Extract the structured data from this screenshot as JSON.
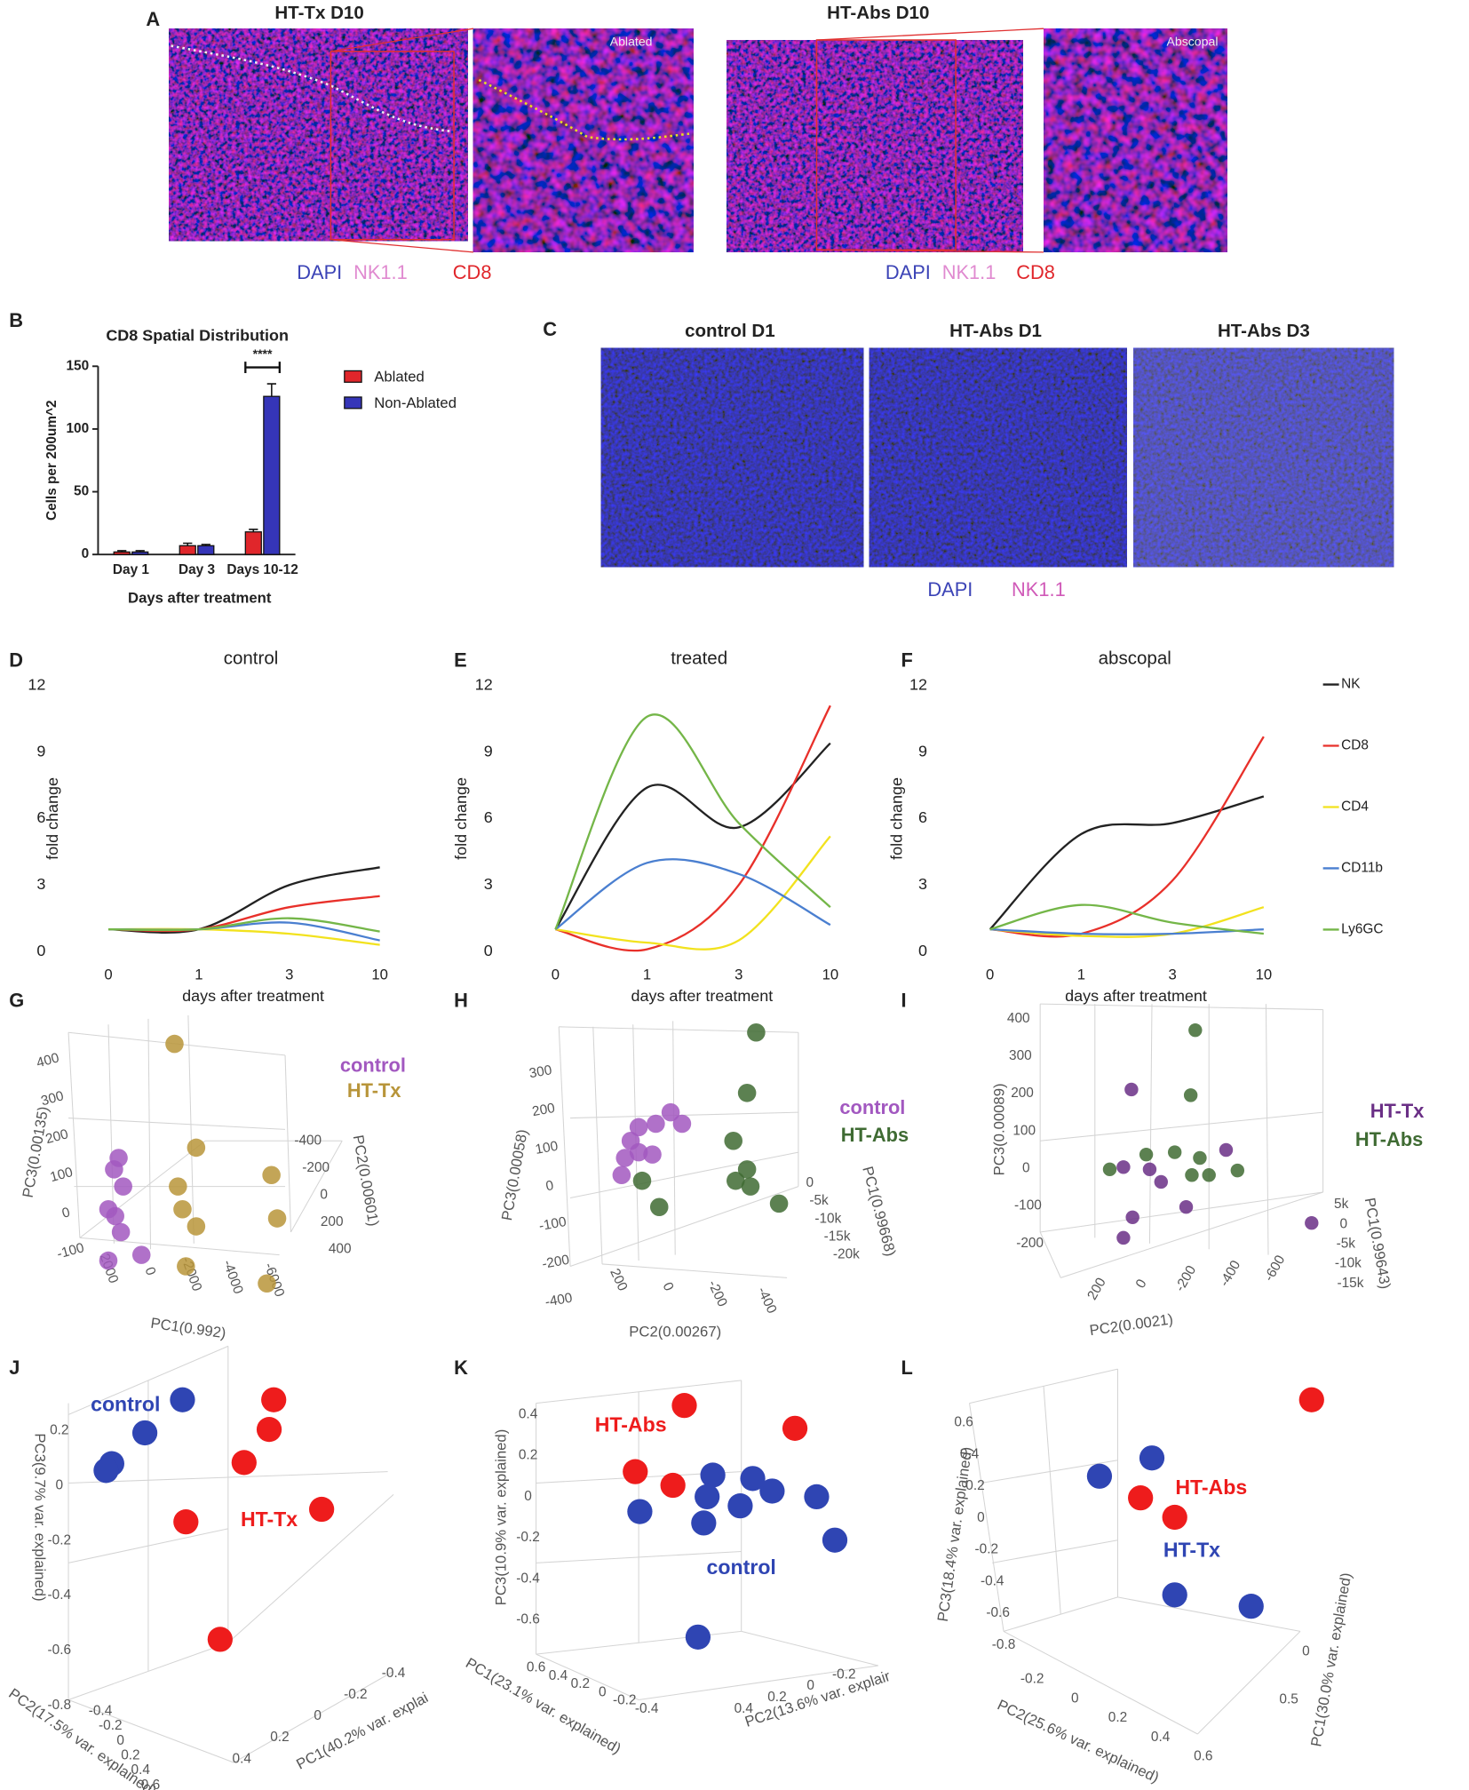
{
  "panel_labels": [
    "A",
    "B",
    "C",
    "D",
    "E",
    "F",
    "G",
    "H",
    "I",
    "J",
    "K",
    "L"
  ],
  "panel_a": {
    "images": [
      {
        "title": "HT-Tx D10",
        "inset": "Ablated"
      },
      {
        "title": "HT-Abs D10",
        "inset": "Abscopal"
      }
    ],
    "stain_legend": [
      "DAPI",
      "NK1.1",
      "CD8"
    ]
  },
  "panel_c": {
    "titles": [
      "control D1",
      "HT-Abs D1",
      "HT-Abs D3"
    ],
    "stain_legend": [
      "DAPI",
      "NK1.1"
    ]
  },
  "chart_data": [
    {
      "type": "bar",
      "title": "CD8 Spatial Distribution",
      "ylabel": "Cells per 200um^2",
      "xlabel": "Days after treatment",
      "categories": [
        "Day 1",
        "Day 3",
        "Days 10-12"
      ],
      "series": [
        {
          "name": "Ablated",
          "color": "#e0262b",
          "values": [
            2,
            7,
            18
          ],
          "errors": [
            1,
            2,
            2
          ]
        },
        {
          "name": "Non-Ablated",
          "color": "#3535b8",
          "values": [
            2,
            7,
            126
          ],
          "errors": [
            1,
            1,
            10
          ]
        }
      ],
      "ylim": [
        0,
        150
      ],
      "yticks": [
        0,
        50,
        100,
        150
      ],
      "legend": "right",
      "annotation": "****"
    },
    {
      "type": "line",
      "title": "control",
      "ylabel": "fold change",
      "xlabel": "days after treatment",
      "categories": [
        "0",
        "1",
        "3",
        "10"
      ],
      "series": [
        {
          "name": "NK",
          "color": "#222222",
          "values": [
            1,
            1,
            3,
            3.8
          ]
        },
        {
          "name": "CD8",
          "color": "#e8302a",
          "values": [
            1,
            1,
            2,
            2.5
          ]
        },
        {
          "name": "CD4",
          "color": "#f2e21e",
          "values": [
            1,
            1,
            0.8,
            0.3
          ]
        },
        {
          "name": "CD11b",
          "color": "#4a7fd0",
          "values": [
            1,
            1,
            1.3,
            0.5
          ]
        },
        {
          "name": "Ly6GC",
          "color": "#74b648",
          "values": [
            1,
            1,
            1.5,
            0.9
          ]
        }
      ],
      "ylim": [
        0,
        12
      ],
      "yticks": [
        0,
        3,
        6,
        9,
        12
      ]
    },
    {
      "type": "line",
      "title": "treated",
      "ylabel": "fold change",
      "xlabel": "days after treatment",
      "categories": [
        "0",
        "1",
        "3",
        "10"
      ],
      "series": [
        {
          "name": "NK",
          "color": "#222222",
          "values": [
            1,
            7.4,
            5.6,
            9.4
          ]
        },
        {
          "name": "CD8",
          "color": "#e8302a",
          "values": [
            1,
            0.1,
            3,
            11.1
          ]
        },
        {
          "name": "CD4",
          "color": "#f2e21e",
          "values": [
            1,
            0.4,
            0.5,
            5.2
          ]
        },
        {
          "name": "CD11b",
          "color": "#4a7fd0",
          "values": [
            1,
            4,
            3.5,
            1.2
          ]
        },
        {
          "name": "Ly6GC",
          "color": "#74b648",
          "values": [
            1,
            10.6,
            5.8,
            2
          ]
        }
      ],
      "ylim": [
        0,
        12
      ],
      "yticks": [
        0,
        3,
        6,
        9,
        12
      ]
    },
    {
      "type": "line",
      "title": "abscopal",
      "ylabel": "fold change",
      "xlabel": "days after treatment",
      "categories": [
        "0",
        "1",
        "3",
        "10"
      ],
      "series": [
        {
          "name": "NK",
          "color": "#222222",
          "values": [
            1,
            5.3,
            5.8,
            7
          ]
        },
        {
          "name": "CD8",
          "color": "#e8302a",
          "values": [
            1,
            0.8,
            3.2,
            9.7
          ]
        },
        {
          "name": "CD4",
          "color": "#f2e21e",
          "values": [
            1,
            0.7,
            0.8,
            2
          ]
        },
        {
          "name": "CD11b",
          "color": "#4a7fd0",
          "values": [
            1,
            0.8,
            0.8,
            1
          ]
        },
        {
          "name": "Ly6GC",
          "color": "#74b648",
          "values": [
            1,
            2.1,
            1.3,
            0.8
          ]
        }
      ],
      "ylim": [
        0,
        12
      ],
      "yticks": [
        0,
        3,
        6,
        9,
        12
      ],
      "legend": "right"
    }
  ],
  "pca_panels": [
    {
      "axes": [
        {
          "label": "PC3(0.00135)",
          "ticks": [
            "400",
            "300",
            "200",
            "100",
            "0",
            "-100"
          ]
        },
        {
          "label": "PC1(0.992)",
          "ticks": [
            "2000",
            "0",
            "-2000",
            "-4000",
            "-6000"
          ]
        },
        {
          "label": "PC2(0.00601)",
          "ticks": [
            "-400",
            "-200",
            "0",
            "200",
            "400"
          ]
        }
      ],
      "groups": [
        {
          "name": "control",
          "color": "#a258c0"
        },
        {
          "name": "HT-Tx",
          "color": "#b8953a"
        }
      ]
    },
    {
      "axes": [
        {
          "label": "PC3(0.00058)",
          "ticks": [
            "300",
            "200",
            "100",
            "0",
            "-100",
            "-200",
            "-400"
          ]
        },
        {
          "label": "PC1(0.99668)",
          "ticks": [
            "0",
            "-5k",
            "-10k",
            "-15k",
            "-20k"
          ]
        },
        {
          "label": "PC2(0.00267)",
          "ticks": [
            "200",
            "0",
            "-200",
            "-400"
          ]
        }
      ],
      "groups": [
        {
          "name": "control",
          "color": "#a258c0"
        },
        {
          "name": "HT-Abs",
          "color": "#3f6b33"
        }
      ]
    },
    {
      "axes": [
        {
          "label": "PC3(0.00089)",
          "ticks": [
            "400",
            "300",
            "200",
            "100",
            "0",
            "-100",
            "-200"
          ]
        },
        {
          "label": "PC1(0.99643)",
          "ticks": [
            "5k",
            "0",
            "-5k",
            "-10k",
            "-15k"
          ]
        },
        {
          "label": "PC2(0.0021)",
          "ticks": [
            "200",
            "0",
            "-200",
            "-400",
            "-600"
          ]
        }
      ],
      "groups": [
        {
          "name": "HT-Tx",
          "color": "#6a2f86"
        },
        {
          "name": "HT-Abs",
          "color": "#3f6b33"
        }
      ]
    },
    {
      "axes": [
        {
          "label": "PC3(9.7% var. explained)",
          "ticks": [
            "0.2",
            "0",
            "-0.2",
            "-0.4",
            "-0.6",
            "-0.8"
          ]
        },
        {
          "label": "PC2(17.5% var. explained)",
          "ticks": [
            "-0.4",
            "-0.2",
            "0",
            "0.2",
            "0.4",
            "0.6"
          ]
        },
        {
          "label": "PC1(40.2% var. explai",
          "ticks": [
            "-0.4",
            "-0.2",
            "0",
            "0.2",
            "0.4"
          ]
        }
      ],
      "groups": [
        {
          "name": "control",
          "color": "#2f45b3"
        },
        {
          "name": "HT-Tx",
          "color": "#ee1c1c"
        }
      ]
    },
    {
      "axes": [
        {
          "label": "PC3(10.9% var. explained)",
          "ticks": [
            "0.4",
            "0.2",
            "0",
            "-0.2",
            "-0.4",
            "-0.6"
          ]
        },
        {
          "label": "PC1(23.1% var. explained)",
          "ticks": [
            "0.6",
            "0.4",
            "0.2",
            "0",
            "-0.2",
            "-0.4"
          ]
        },
        {
          "label": "PC2(13.6% var. explair",
          "ticks": [
            "-0.2",
            "0",
            "0.2",
            "0.4"
          ]
        }
      ],
      "groups": [
        {
          "name": "HT-Abs",
          "color": "#ee1c1c"
        },
        {
          "name": "control",
          "color": "#2f45b3"
        }
      ]
    },
    {
      "axes": [
        {
          "label": "PC3(18.4% var. explained)",
          "ticks": [
            "0.6",
            "0.4",
            "0.2",
            "0",
            "-0.2",
            "-0.4",
            "-0.6",
            "-0.8"
          ]
        },
        {
          "label": "PC2(25.6% var. explained)",
          "ticks": [
            "-0.2",
            "0",
            "0.2",
            "0.4",
            "0.6"
          ]
        },
        {
          "label": "PC1(30.0% var. explained)",
          "ticks": [
            "0",
            "0.5"
          ]
        }
      ],
      "groups": [
        {
          "name": "HT-Abs",
          "color": "#ee1c1c"
        },
        {
          "name": "HT-Tx",
          "color": "#2f45b3"
        }
      ]
    }
  ]
}
